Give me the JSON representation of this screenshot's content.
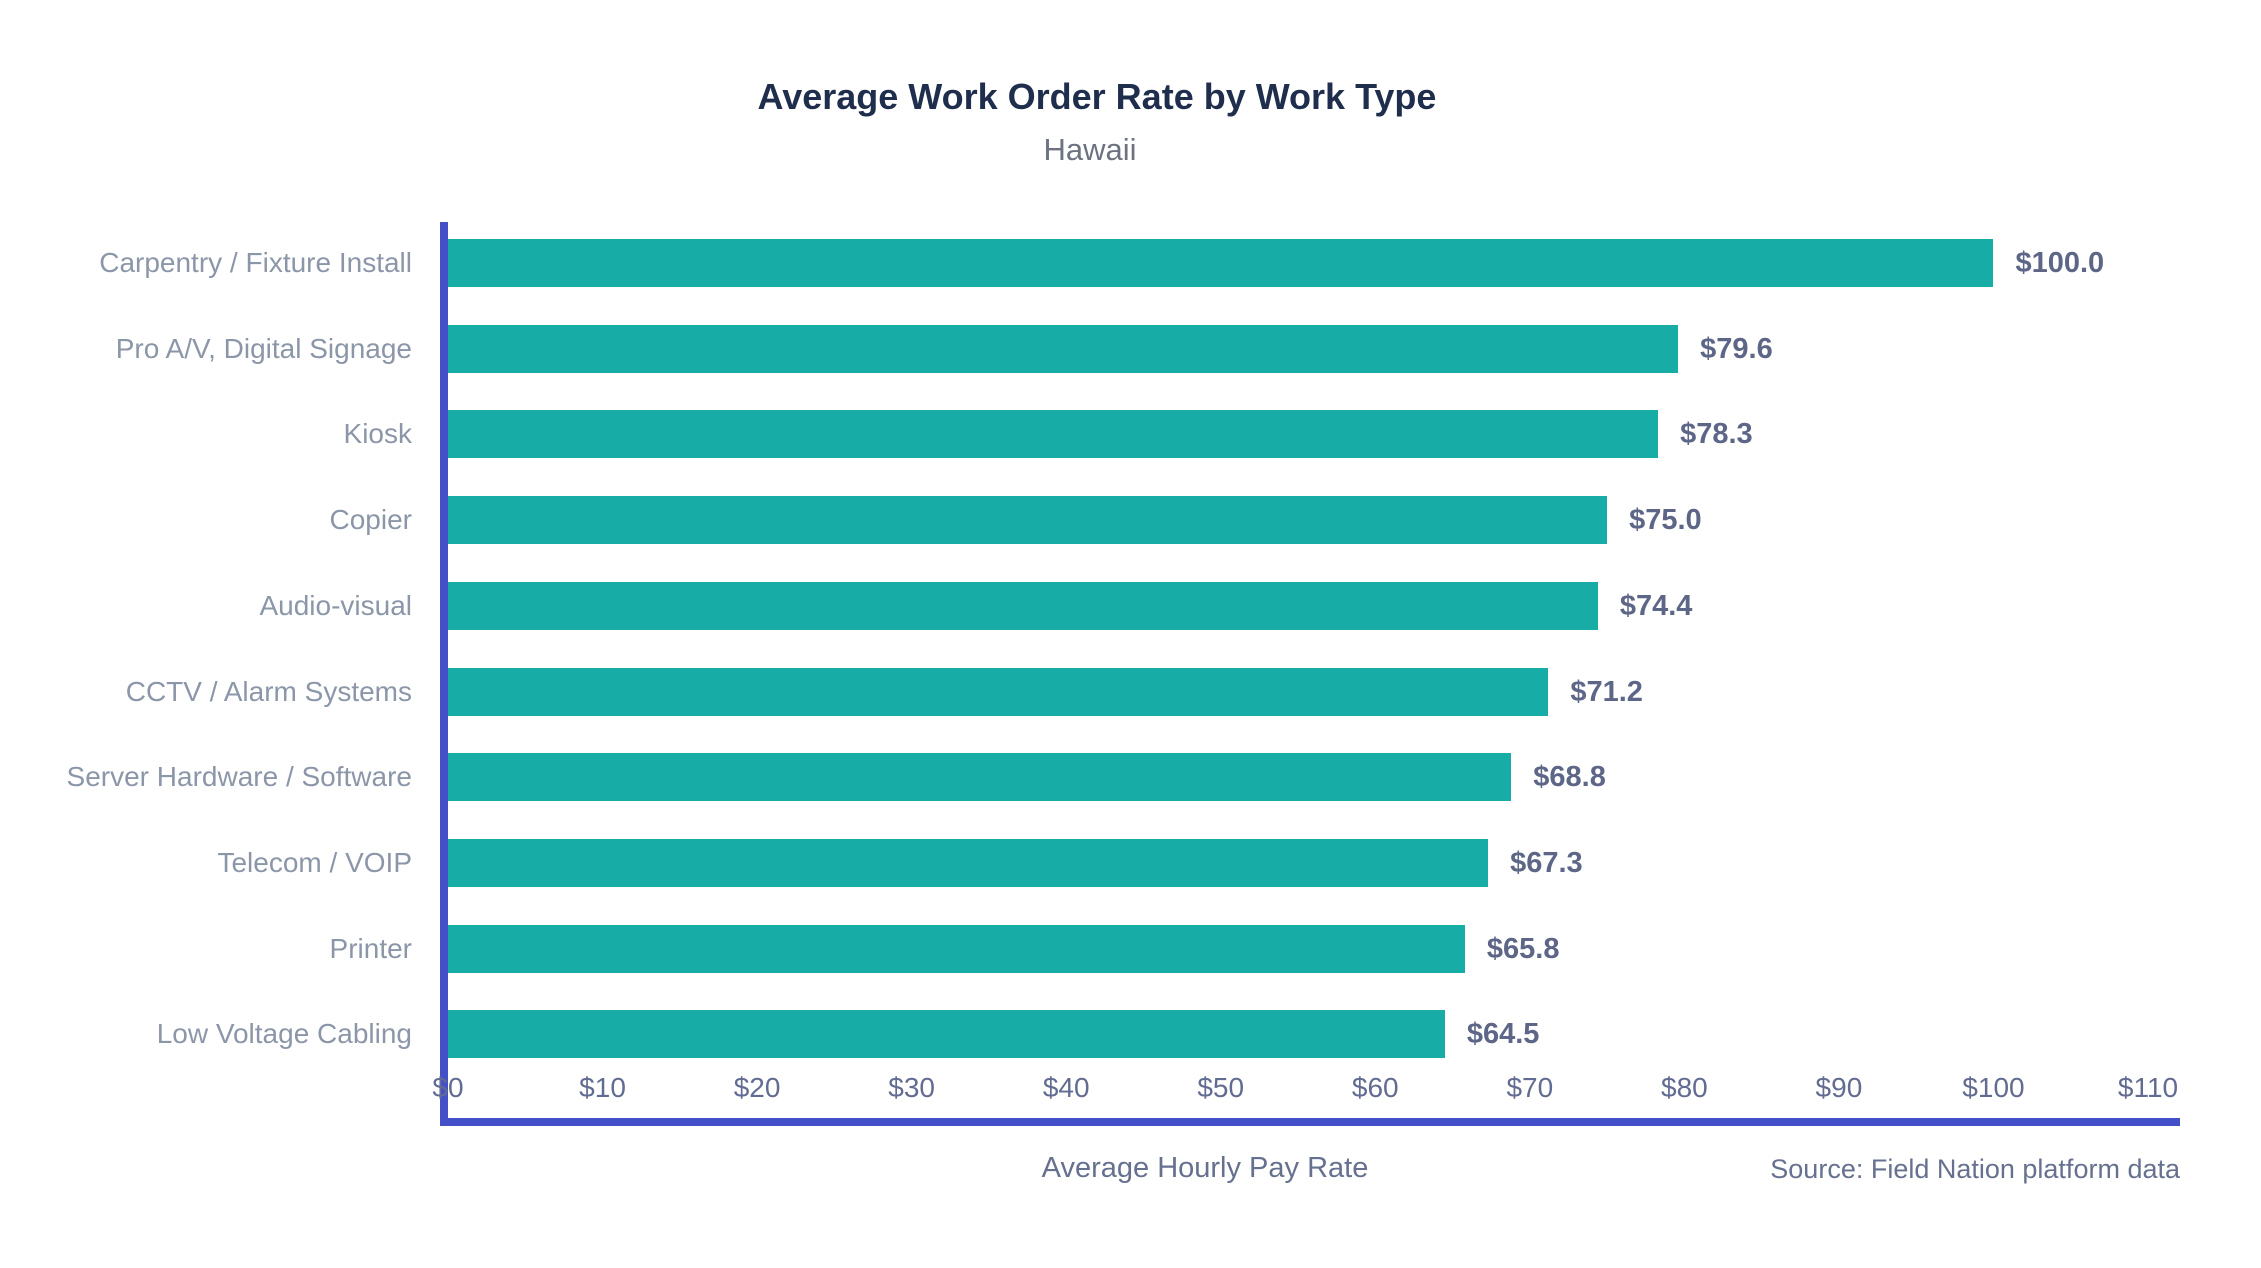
{
  "chart_data": {
    "type": "bar",
    "orientation": "horizontal",
    "title": "Average Work Order Rate by Work Type",
    "subtitle": "Hawaii",
    "xlabel": "Average Hourly Pay Rate",
    "source": "Source: Field Nation platform data",
    "categories": [
      "Carpentry / Fixture Install",
      "Pro A/V, Digital Signage",
      "Kiosk",
      "Copier",
      "Audio-visual",
      "CCTV / Alarm Systems",
      "Server Hardware / Software",
      "Telecom / VOIP",
      "Printer",
      "Low Voltage Cabling"
    ],
    "values": [
      100.0,
      79.6,
      78.3,
      75.0,
      74.4,
      71.2,
      68.8,
      67.3,
      65.8,
      64.5
    ],
    "value_labels": [
      "$100.0",
      "$79.6",
      "$78.3",
      "$75.0",
      "$74.4",
      "$71.2",
      "$68.8",
      "$67.3",
      "$65.8",
      "$64.5"
    ],
    "x_tick_values": [
      0,
      10,
      20,
      30,
      40,
      50,
      60,
      70,
      80,
      90,
      100,
      110
    ],
    "x_tick_labels": [
      "$0",
      "$10",
      "$20",
      "$30",
      "$40",
      "$50",
      "$60",
      "$70",
      "$80",
      "$90",
      "$100",
      "$110"
    ],
    "xlim": [
      0,
      110
    ],
    "grid": false,
    "legend": null,
    "bar_color": "#18ACA6",
    "axis_color": "#4450C8",
    "category_label_color": "#8C96A9",
    "value_label_color": "#5D6687",
    "tick_label_color": "#626B91",
    "title_color": "#1F2E4D",
    "subtitle_color": "#6C7280",
    "footer_text_color": "#66708F"
  }
}
